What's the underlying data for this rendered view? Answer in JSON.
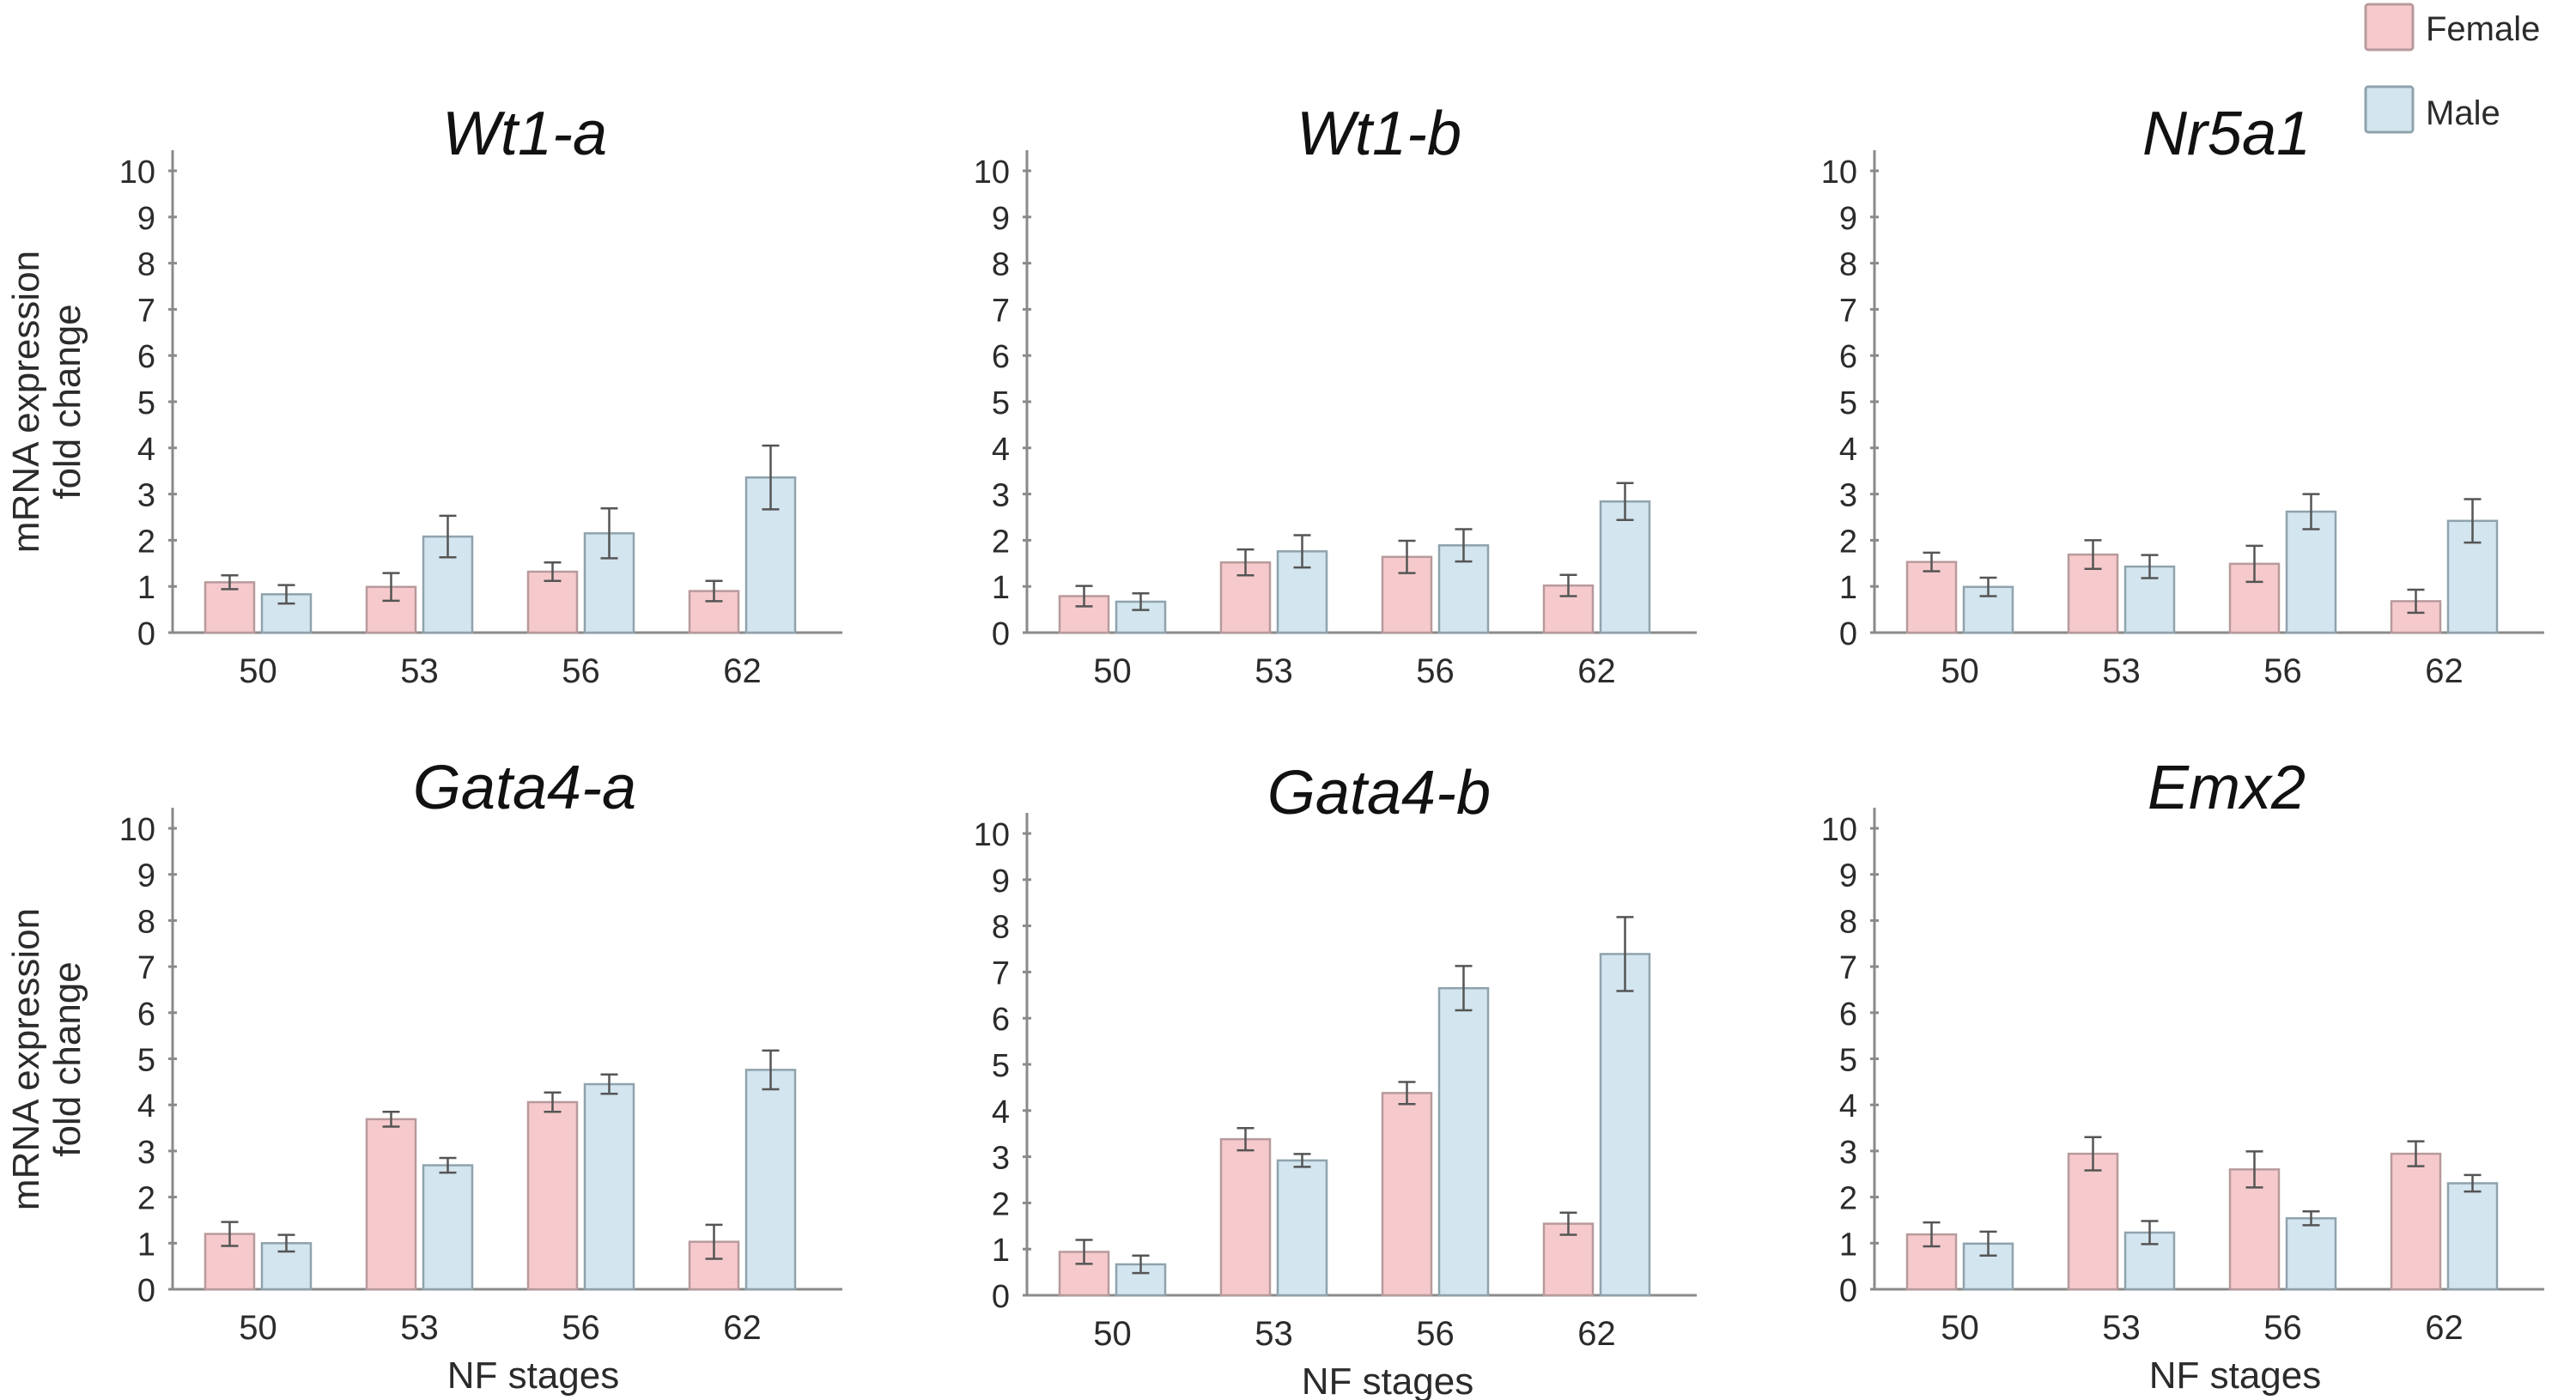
{
  "figure": {
    "legend": [
      {
        "label": "Female",
        "color": "#f6cacc",
        "border": "#b89a9c"
      },
      {
        "label": "Male",
        "color": "#d3e5ee",
        "border": "#8fa3ad"
      }
    ],
    "ylabel_line1": "mRNA expression",
    "ylabel_line2": "fold change",
    "xlabel": "NF stages"
  },
  "chart_data": [
    {
      "type": "bar",
      "title": "Wt1-a",
      "xlabel": "",
      "ylabel": "mRNA expression fold change",
      "categories": [
        "50",
        "53",
        "56",
        "62"
      ],
      "ylim": [
        0,
        10
      ],
      "yticks": [
        "0",
        "1",
        "2",
        "3",
        "4",
        "5",
        "6",
        "7",
        "8",
        "9",
        "10"
      ],
      "grid": false,
      "series": [
        {
          "name": "Female",
          "values": [
            1.09,
            0.99,
            1.32,
            0.9
          ],
          "errors": [
            0.15,
            0.3,
            0.2,
            0.22
          ]
        },
        {
          "name": "Male",
          "values": [
            0.83,
            2.08,
            2.15,
            3.36
          ],
          "errors": [
            0.2,
            0.45,
            0.54,
            0.69
          ]
        }
      ]
    },
    {
      "type": "bar",
      "title": "Wt1-b",
      "xlabel": "",
      "ylabel": "",
      "categories": [
        "50",
        "53",
        "56",
        "62"
      ],
      "ylim": [
        0,
        10
      ],
      "yticks": [
        "0",
        "1",
        "2",
        "3",
        "4",
        "5",
        "6",
        "7",
        "8",
        "9",
        "10"
      ],
      "grid": false,
      "series": [
        {
          "name": "Female",
          "values": [
            0.79,
            1.52,
            1.64,
            1.02
          ],
          "errors": [
            0.22,
            0.28,
            0.35,
            0.23
          ]
        },
        {
          "name": "Male",
          "values": [
            0.67,
            1.76,
            1.89,
            2.84
          ],
          "errors": [
            0.18,
            0.35,
            0.35,
            0.4
          ]
        }
      ]
    },
    {
      "type": "bar",
      "title": "Nr5a1",
      "xlabel": "",
      "ylabel": "",
      "categories": [
        "50",
        "53",
        "56",
        "62"
      ],
      "ylim": [
        0,
        10
      ],
      "yticks": [
        "0",
        "1",
        "2",
        "3",
        "4",
        "5",
        "6",
        "7",
        "8",
        "9",
        "10"
      ],
      "grid": false,
      "series": [
        {
          "name": "Female",
          "values": [
            1.53,
            1.69,
            1.49,
            0.68
          ],
          "errors": [
            0.2,
            0.31,
            0.39,
            0.25
          ]
        },
        {
          "name": "Male",
          "values": [
            0.99,
            1.43,
            2.62,
            2.42
          ],
          "errors": [
            0.2,
            0.25,
            0.38,
            0.47
          ]
        }
      ]
    },
    {
      "type": "bar",
      "title": "Gata4-a",
      "xlabel": "NF stages",
      "ylabel": "mRNA expression fold change",
      "categories": [
        "50",
        "53",
        "56",
        "62"
      ],
      "ylim": [
        0,
        10
      ],
      "yticks": [
        "0",
        "1",
        "2",
        "3",
        "4",
        "5",
        "6",
        "7",
        "8",
        "9",
        "10"
      ],
      "grid": false,
      "series": [
        {
          "name": "Female",
          "values": [
            1.2,
            3.69,
            4.06,
            1.03
          ],
          "errors": [
            0.26,
            0.16,
            0.21,
            0.37
          ]
        },
        {
          "name": "Male",
          "values": [
            1.0,
            2.69,
            4.45,
            4.76
          ],
          "errors": [
            0.18,
            0.16,
            0.21,
            0.42
          ]
        }
      ]
    },
    {
      "type": "bar",
      "title": "Gata4-b",
      "xlabel": "NF stages",
      "ylabel": "",
      "categories": [
        "50",
        "53",
        "56",
        "62"
      ],
      "ylim": [
        0,
        10
      ],
      "yticks": [
        "0",
        "1",
        "2",
        "3",
        "4",
        "5",
        "6",
        "7",
        "8",
        "9",
        "10"
      ],
      "grid": false,
      "series": [
        {
          "name": "Female",
          "values": [
            0.94,
            3.38,
            4.38,
            1.55
          ],
          "errors": [
            0.26,
            0.24,
            0.24,
            0.24
          ]
        },
        {
          "name": "Male",
          "values": [
            0.67,
            2.92,
            6.65,
            7.39
          ],
          "errors": [
            0.19,
            0.14,
            0.48,
            0.8
          ]
        }
      ]
    },
    {
      "type": "bar",
      "title": "Emx2",
      "xlabel": "NF stages",
      "ylabel": "",
      "categories": [
        "50",
        "53",
        "56",
        "62"
      ],
      "ylim": [
        0,
        10
      ],
      "yticks": [
        "0",
        "1",
        "2",
        "3",
        "4",
        "5",
        "6",
        "7",
        "8",
        "9",
        "10"
      ],
      "grid": false,
      "series": [
        {
          "name": "Female",
          "values": [
            1.19,
            2.94,
            2.6,
            2.94
          ],
          "errors": [
            0.26,
            0.36,
            0.39,
            0.27
          ]
        },
        {
          "name": "Male",
          "values": [
            0.99,
            1.23,
            1.54,
            2.3
          ],
          "errors": [
            0.26,
            0.25,
            0.15,
            0.18
          ]
        }
      ]
    }
  ]
}
